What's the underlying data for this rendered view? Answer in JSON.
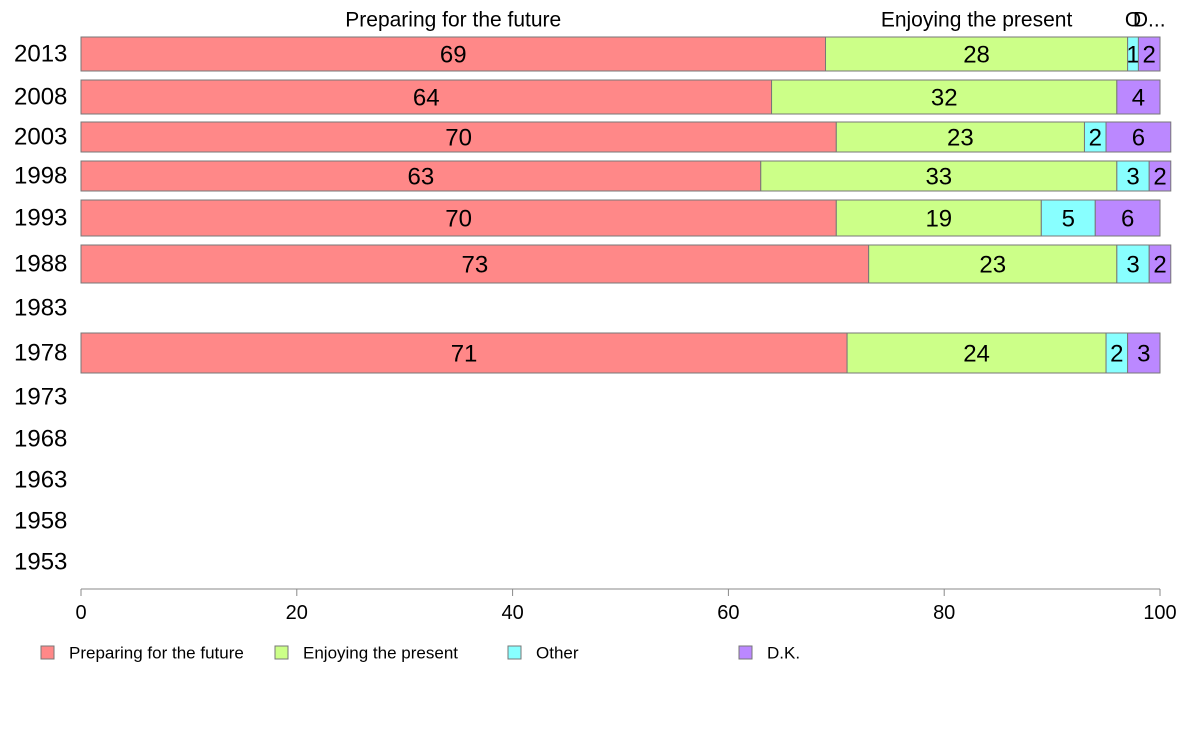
{
  "chart_data": {
    "type": "bar",
    "orientation": "horizontal",
    "stacked": true,
    "categories": [
      "2013",
      "2008",
      "2003",
      "1998",
      "1993",
      "1988",
      "1983",
      "1978",
      "1973",
      "1968",
      "1963",
      "1958",
      "1953"
    ],
    "series": [
      {
        "name": "Preparing for the future",
        "color": "#ff8888",
        "values": [
          69,
          64,
          70,
          63,
          70,
          73,
          null,
          71,
          null,
          null,
          null,
          null,
          null
        ]
      },
      {
        "name": "Enjoying the present",
        "color": "#ccff88",
        "values": [
          28,
          32,
          23,
          33,
          19,
          23,
          null,
          24,
          null,
          null,
          null,
          null,
          null
        ]
      },
      {
        "name": "Other",
        "color": "#88ffff",
        "values": [
          1,
          0,
          2,
          3,
          5,
          3,
          null,
          2,
          null,
          null,
          null,
          null,
          null
        ]
      },
      {
        "name": "D.K.",
        "color": "#bb88ff",
        "values": [
          2,
          4,
          6,
          2,
          6,
          2,
          null,
          3,
          null,
          null,
          null,
          null,
          null
        ]
      }
    ],
    "column_headers": [
      "Preparing for the future",
      "Enjoying the present",
      "Other",
      "D.K."
    ],
    "column_header_display": [
      "Preparing for the future",
      "Enjoying the present",
      "O",
      "D..."
    ],
    "xlim": [
      0,
      100
    ],
    "xticks": [
      0,
      20,
      40,
      60,
      80,
      100
    ],
    "grid": false,
    "legend_position": "bottom"
  }
}
